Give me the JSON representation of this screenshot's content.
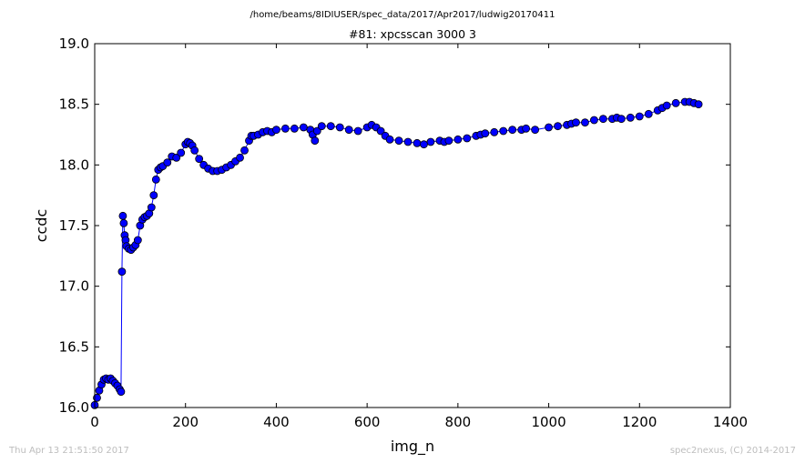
{
  "suptitle": "/home/beams/8IDIUSER/spec_data/2017/Apr2017/ludwig20170411",
  "footer_left": "Thu Apr 13 21:51:50 2017",
  "footer_right": "spec2nexus, (C) 2014-2017",
  "chart_data": {
    "type": "line",
    "title": "#81: xpcsscan 3000 3",
    "xlabel": "img_n",
    "ylabel": "ccdc",
    "xlim": [
      0,
      1400
    ],
    "ylim": [
      16.0,
      19.0
    ],
    "xticks": [
      "0",
      "200",
      "400",
      "600",
      "800",
      "1000",
      "1200",
      "1400"
    ],
    "yticks": [
      "16.0",
      "16.5",
      "17.0",
      "17.5",
      "18.0",
      "18.5",
      "19.0"
    ],
    "grid": false,
    "marker": "circle",
    "colors": {
      "line": "#0000ff",
      "marker_fill": "#0000ff",
      "marker_edge": "#000000"
    },
    "series": [
      {
        "x": [
          0,
          5,
          10,
          15,
          20,
          25,
          30,
          35,
          40,
          45,
          50,
          55,
          58,
          60,
          62,
          64,
          66,
          68,
          70,
          75,
          80,
          85,
          90,
          95,
          100,
          105,
          110,
          115,
          120,
          125,
          130,
          135,
          140,
          145,
          150,
          160,
          170,
          180,
          190,
          200,
          205,
          210,
          215,
          220,
          230,
          240,
          250,
          260,
          270,
          280,
          290,
          300,
          310,
          320,
          330,
          340,
          345,
          350,
          360,
          370,
          380,
          390,
          400,
          420,
          440,
          460,
          475,
          480,
          485,
          490,
          500,
          520,
          540,
          560,
          580,
          600,
          610,
          620,
          630,
          640,
          650,
          670,
          690,
          710,
          725,
          740,
          760,
          770,
          780,
          800,
          820,
          840,
          850,
          860,
          880,
          900,
          920,
          940,
          950,
          970,
          1000,
          1020,
          1040,
          1050,
          1060,
          1080,
          1100,
          1120,
          1140,
          1150,
          1160,
          1180,
          1200,
          1220,
          1240,
          1250,
          1260,
          1280,
          1300,
          1310,
          1320,
          1330
        ],
        "y": [
          16.02,
          16.08,
          16.14,
          16.19,
          16.23,
          16.24,
          16.23,
          16.24,
          16.22,
          16.2,
          16.18,
          16.15,
          16.13,
          17.12,
          17.58,
          17.52,
          17.42,
          17.38,
          17.33,
          17.31,
          17.3,
          17.32,
          17.34,
          17.38,
          17.5,
          17.55,
          17.57,
          17.58,
          17.6,
          17.65,
          17.75,
          17.88,
          17.96,
          17.98,
          17.99,
          18.02,
          18.07,
          18.06,
          18.1,
          18.17,
          18.19,
          18.18,
          18.16,
          18.12,
          18.05,
          18.0,
          17.97,
          17.95,
          17.95,
          17.96,
          17.98,
          18.0,
          18.03,
          18.06,
          18.12,
          18.2,
          18.24,
          18.24,
          18.25,
          18.27,
          18.28,
          18.27,
          18.29,
          18.3,
          18.3,
          18.31,
          18.29,
          18.25,
          18.2,
          18.28,
          18.32,
          18.32,
          18.31,
          18.29,
          18.28,
          18.31,
          18.33,
          18.31,
          18.28,
          18.24,
          18.21,
          18.2,
          18.19,
          18.18,
          18.17,
          18.19,
          18.2,
          18.19,
          18.2,
          18.21,
          18.22,
          18.24,
          18.25,
          18.26,
          18.27,
          18.28,
          18.29,
          18.29,
          18.3,
          18.29,
          18.31,
          18.32,
          18.33,
          18.34,
          18.35,
          18.35,
          18.37,
          18.38,
          18.38,
          18.39,
          18.38,
          18.39,
          18.4,
          18.42,
          18.45,
          18.47,
          18.49,
          18.51,
          18.52,
          18.52,
          18.51,
          18.5
        ]
      }
    ]
  }
}
